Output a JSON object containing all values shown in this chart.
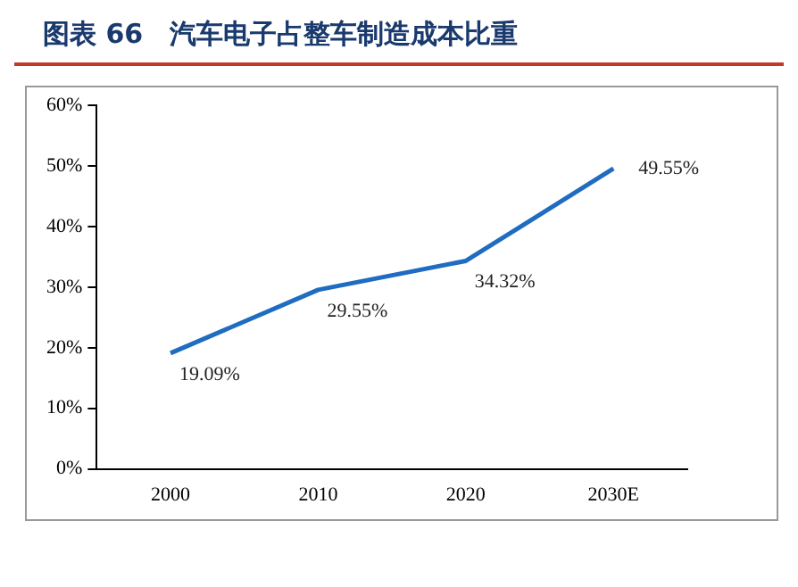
{
  "chart_data": {
    "type": "line",
    "title": "图表 66　汽车电子占整车制造成本比重",
    "categories": [
      "2000",
      "2010",
      "2020",
      "2030E"
    ],
    "series": [
      {
        "color": "#1f6cc0",
        "values": [
          19.09,
          29.55,
          34.32,
          49.55
        ],
        "value_labels": [
          "19.09%",
          "29.55%",
          "34.32%",
          "49.55%"
        ]
      }
    ],
    "ylim": [
      0,
      60
    ],
    "yticks": [
      {
        "value": 0,
        "label": "0%"
      },
      {
        "value": 10,
        "label": "10%"
      },
      {
        "value": 20,
        "label": "20%"
      },
      {
        "value": 30,
        "label": "30%"
      },
      {
        "value": 40,
        "label": "40%"
      },
      {
        "value": 50,
        "label": "50%"
      },
      {
        "value": 60,
        "label": "60%"
      }
    ],
    "grid": false,
    "legend": false,
    "marker": "none",
    "line_style": "solid"
  }
}
